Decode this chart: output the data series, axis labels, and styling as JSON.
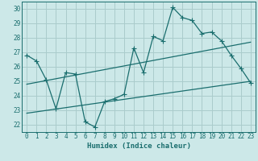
{
  "title": "",
  "xlabel": "Humidex (Indice chaleur)",
  "ylabel": "",
  "bg_color": "#cce8e8",
  "grid_color": "#aacccc",
  "line_color": "#1a6e6e",
  "xlim": [
    -0.5,
    23.5
  ],
  "ylim": [
    21.5,
    30.5
  ],
  "xticks": [
    0,
    1,
    2,
    3,
    4,
    5,
    6,
    7,
    8,
    9,
    10,
    11,
    12,
    13,
    14,
    15,
    16,
    17,
    18,
    19,
    20,
    21,
    22,
    23
  ],
  "yticks": [
    22,
    23,
    24,
    25,
    26,
    27,
    28,
    29,
    30
  ],
  "main_x": [
    0,
    1,
    2,
    3,
    4,
    5,
    6,
    7,
    8,
    9,
    10,
    11,
    12,
    13,
    14,
    15,
    16,
    17,
    18,
    19,
    20,
    21,
    22,
    23
  ],
  "main_y": [
    26.8,
    26.4,
    25.1,
    23.1,
    25.6,
    25.5,
    22.2,
    21.85,
    23.6,
    23.8,
    24.1,
    27.3,
    25.6,
    28.1,
    27.8,
    30.1,
    29.4,
    29.2,
    28.3,
    28.4,
    27.8,
    26.8,
    25.9,
    24.9
  ],
  "trend1_x": [
    0,
    23
  ],
  "trend1_y": [
    24.8,
    27.7
  ],
  "trend2_x": [
    0,
    23
  ],
  "trend2_y": [
    22.8,
    25.0
  ],
  "label_fontsize": 5.5,
  "xlabel_fontsize": 6.5,
  "marker_size": 2.5
}
